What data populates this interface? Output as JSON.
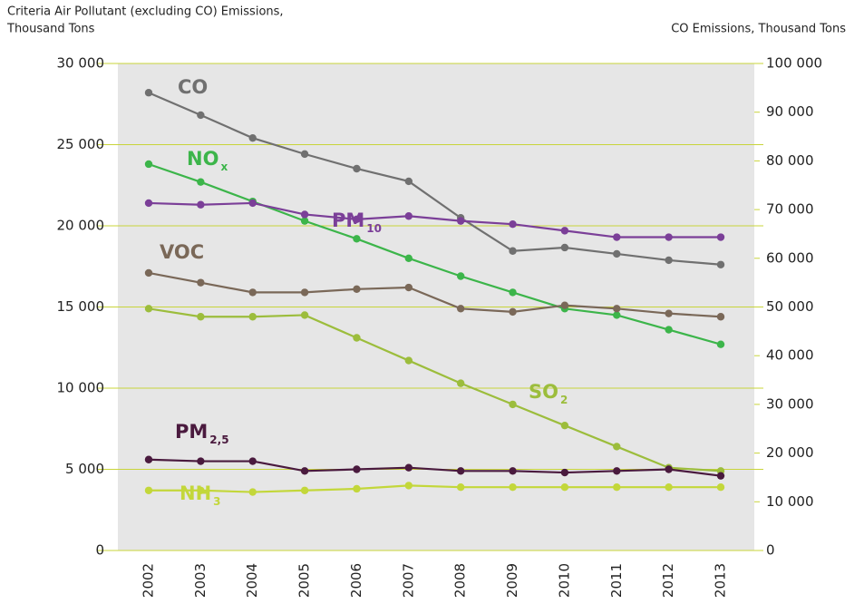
{
  "chart_data": {
    "type": "line",
    "y_title": [
      "Criteria Air Pollutant (excluding CO) Emissions,",
      "Thousand Tons"
    ],
    "y2_title": "CO Emissions, Thousand Tons",
    "categories": [
      "2002",
      "2003",
      "2004",
      "2005",
      "2006",
      "2007",
      "2008",
      "2009",
      "2010",
      "2011",
      "2012",
      "2013"
    ],
    "ylim": [
      0,
      30000
    ],
    "yticks": [
      {
        "value": 0,
        "label": "0"
      },
      {
        "value": 5000,
        "label": "5 000"
      },
      {
        "value": 10000,
        "label": "10 000"
      },
      {
        "value": 15000,
        "label": "15 000"
      },
      {
        "value": 20000,
        "label": "20 000"
      },
      {
        "value": 25000,
        "label": "25 000"
      },
      {
        "value": 30000,
        "label": "30 000"
      }
    ],
    "y2lim": [
      0,
      100000
    ],
    "y2ticks": [
      {
        "value": 0,
        "label": "0"
      },
      {
        "value": 10000,
        "label": "10 000"
      },
      {
        "value": 20000,
        "label": "20 000"
      },
      {
        "value": 30000,
        "label": "30 000"
      },
      {
        "value": 40000,
        "label": "40 000"
      },
      {
        "value": 50000,
        "label": "50 000"
      },
      {
        "value": 60000,
        "label": "60 000"
      },
      {
        "value": 70000,
        "label": "70 000"
      },
      {
        "value": 80000,
        "label": "80 000"
      },
      {
        "value": 90000,
        "label": "90 000"
      },
      {
        "value": 100000,
        "label": "100 000"
      }
    ],
    "grid": true,
    "series": [
      {
        "name": "CO",
        "color": "#707070",
        "axis": "y2",
        "values": [
          94000,
          89400,
          84700,
          81400,
          78400,
          75800,
          68300,
          61500,
          62200,
          60900,
          59600,
          58700
        ]
      },
      {
        "name": "NO",
        "subscript": "x",
        "color": "#3cb54a",
        "values": [
          23800,
          22700,
          21500,
          20300,
          19200,
          18000,
          16900,
          15900,
          14900,
          14500,
          13600,
          12700
        ]
      },
      {
        "name": "PM",
        "subscript": "10",
        "color": "#7b3f98",
        "values": [
          21400,
          21300,
          21400,
          20700,
          20400,
          20600,
          20300,
          20100,
          19700,
          19300,
          19300,
          19300
        ]
      },
      {
        "name": "VOC",
        "color": "#7a6858",
        "values": [
          17100,
          16500,
          15900,
          15900,
          16100,
          16200,
          14900,
          14700,
          15100,
          14900,
          14600,
          14400
        ]
      },
      {
        "name": "SO",
        "subscript": "2",
        "color": "#9cbd3c",
        "values": [
          14900,
          14400,
          14400,
          14500,
          13100,
          11700,
          10300,
          9000,
          7700,
          6400,
          5100,
          4900
        ]
      },
      {
        "name": "PM",
        "subscript": "2,5",
        "color": "#4a1a3e",
        "values": [
          5600,
          5500,
          5500,
          4900,
          5000,
          5100,
          4900,
          4900,
          4800,
          4900,
          5000,
          4600
        ]
      },
      {
        "name": "NH",
        "subscript": "3",
        "color": "#c3d73a",
        "values": [
          3700,
          3700,
          3600,
          3700,
          3800,
          4000,
          3900,
          3900,
          3900,
          3900,
          3900,
          3900
        ]
      }
    ]
  }
}
